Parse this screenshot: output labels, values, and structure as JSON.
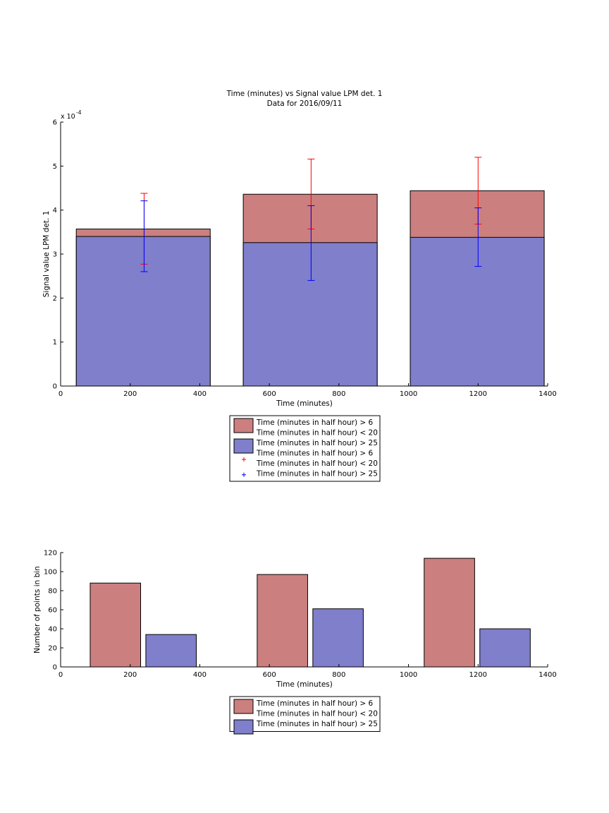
{
  "chart_data": [
    {
      "type": "bar",
      "title": "Time (minutes) vs Signal value LPM det. 1",
      "subtitle": "Data for 2016/09/11",
      "xlabel": "Time (minutes)",
      "ylabel": "Signal value LPM det. 1",
      "exponent_base": "x 10",
      "exponent_power": "-4",
      "xlim": [
        0,
        1400
      ],
      "ylim": [
        0,
        6
      ],
      "xticks": [
        0,
        200,
        400,
        600,
        800,
        1000,
        1200,
        1400
      ],
      "yticks": [
        0,
        1,
        2,
        3,
        4,
        5,
        6
      ],
      "bin_edges": [
        [
          45,
          430
        ],
        [
          525,
          910
        ],
        [
          1005,
          1390
        ]
      ],
      "series": [
        {
          "name": "Time (minutes in half hour) > 6 Time (minutes in half hour) < 20",
          "color": "#cc7f7f",
          "values": [
            3.57,
            4.36,
            4.44
          ]
        },
        {
          "name": "Time (minutes in half hour) > 25",
          "color": "#7f7fcc",
          "values": [
            3.4,
            3.26,
            3.38
          ]
        }
      ],
      "errorbars": [
        {
          "name": "Time (minutes in half hour) > 6 Time (minutes in half hour) < 20",
          "color": "#ff0000",
          "x": [
            240,
            720,
            1200
          ],
          "center": [
            3.57,
            4.36,
            4.44
          ],
          "lower": [
            2.77,
            3.57,
            3.68
          ],
          "upper": [
            4.38,
            5.16,
            5.2
          ]
        },
        {
          "name": "Time (minutes in half hour) > 25",
          "color": "#0000ff",
          "x": [
            240,
            720,
            1200
          ],
          "center": [
            3.4,
            3.26,
            3.38
          ],
          "lower": [
            2.6,
            2.4,
            2.72
          ],
          "upper": [
            4.21,
            4.1,
            4.05
          ]
        }
      ],
      "legend": {
        "placement": "below",
        "entries": [
          {
            "marker": "patch",
            "color": "#cc7f7f",
            "lines": [
              "Time (minutes in half hour) > 6",
              "Time (minutes in half hour) < 20"
            ]
          },
          {
            "marker": "patch",
            "color": "#7f7fcc",
            "lines": [
              "Time (minutes in half hour) > 25"
            ]
          },
          {
            "marker": "plus",
            "color": "#ff0000",
            "lines": [
              "Time (minutes in half hour) > 6",
              "Time (minutes in half hour) < 20"
            ]
          },
          {
            "marker": "plus",
            "color": "#0000ff",
            "lines": [
              "Time (minutes in half hour) > 25"
            ]
          }
        ]
      }
    },
    {
      "type": "bar",
      "title": "",
      "xlabel": "Time (minutes)",
      "ylabel": "Number of points in bin",
      "xlim": [
        0,
        1400
      ],
      "ylim": [
        0,
        120
      ],
      "xticks": [
        0,
        200,
        400,
        600,
        800,
        1000,
        1200,
        1400
      ],
      "yticks": [
        0,
        20,
        40,
        60,
        80,
        100,
        120
      ],
      "bars": [
        {
          "series": 0,
          "x0": 85,
          "x1": 230,
          "value": 88
        },
        {
          "series": 1,
          "x0": 245,
          "x1": 390,
          "value": 34
        },
        {
          "series": 0,
          "x0": 565,
          "x1": 710,
          "value": 97
        },
        {
          "series": 1,
          "x0": 725,
          "x1": 870,
          "value": 61
        },
        {
          "series": 0,
          "x0": 1045,
          "x1": 1190,
          "value": 114
        },
        {
          "series": 1,
          "x0": 1205,
          "x1": 1350,
          "value": 40
        }
      ],
      "series": [
        {
          "name": "Time (minutes in half hour) > 6 Time (minutes in half hour) < 20",
          "color": "#cc7f7f"
        },
        {
          "name": "Time (minutes in half hour) > 25",
          "color": "#7f7fcc"
        }
      ],
      "legend": {
        "placement": "below",
        "entries": [
          {
            "marker": "patch",
            "color": "#cc7f7f",
            "lines": [
              "Time (minutes in half hour) > 6",
              "Time (minutes in half hour) < 20"
            ]
          },
          {
            "marker": "patch",
            "color": "#7f7fcc",
            "lines": [
              "Time (minutes in half hour) > 25"
            ]
          }
        ]
      }
    }
  ]
}
